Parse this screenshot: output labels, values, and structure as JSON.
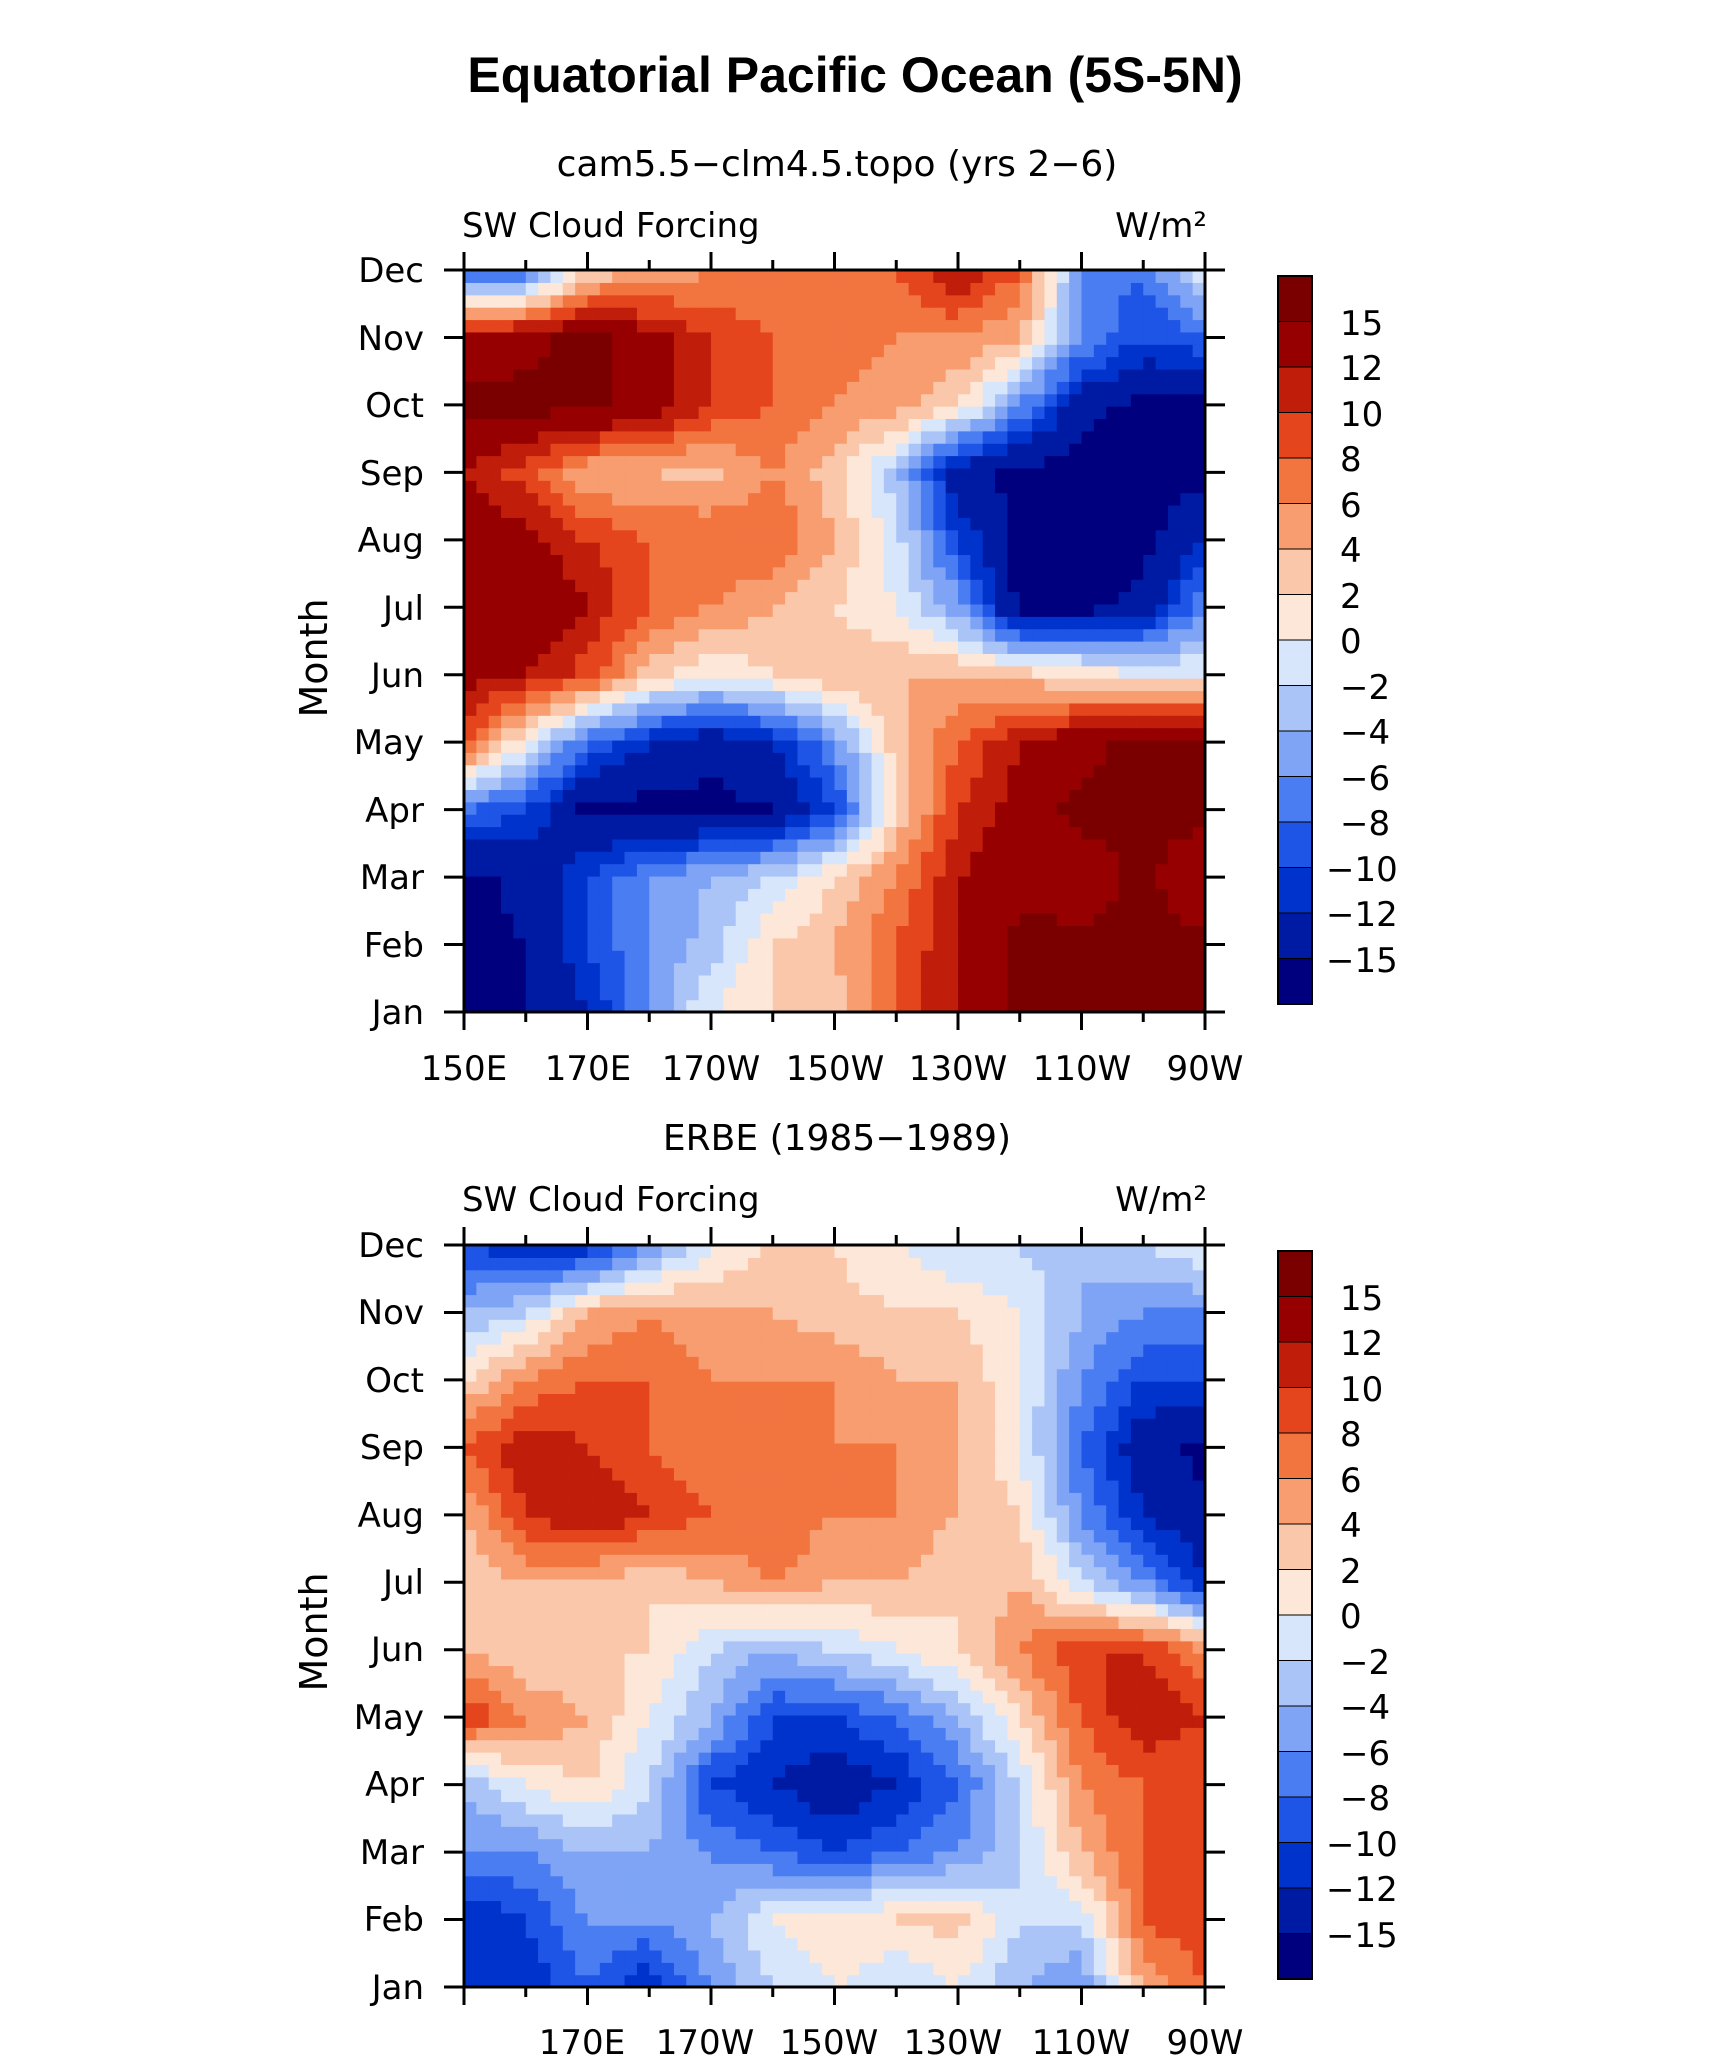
{
  "figure": {
    "title": "Equatorial Pacific Ocean (5S-5N)"
  },
  "colors": {
    "levels": [
      -15,
      -12,
      -10,
      -8,
      -6,
      -4,
      -2,
      0,
      2,
      4,
      6,
      8,
      10,
      12,
      15
    ],
    "palette": [
      "#00007f",
      "#001ba3",
      "#0033cc",
      "#1f55e6",
      "#4a7df2",
      "#7fa4f5",
      "#aac4f7",
      "#d7e6fb",
      "#fde7d8",
      "#fbc7aa",
      "#f79d6f",
      "#f27540",
      "#e5451d",
      "#c01d0a",
      "#960000",
      "#7a0000"
    ]
  },
  "colorbar": {
    "labels": [
      "15",
      "12",
      "10",
      "8",
      "6",
      "4",
      "2",
      "0",
      "−2",
      "−4",
      "−6",
      "−8",
      "−10",
      "−12",
      "−15"
    ]
  },
  "panels": [
    {
      "subtitle": "cam5.5−clm4.5.topo (yrs 2−6)",
      "left_label": "SW Cloud Forcing",
      "right_label": "W/m²",
      "ylabel": "Month",
      "x_ticks": [
        "150E",
        "170E",
        "170W",
        "150W",
        "130W",
        "110W",
        "90W"
      ],
      "y_ticks": [
        "Jan",
        "Feb",
        "Mar",
        "Apr",
        "May",
        "Jun",
        "Jul",
        "Aug",
        "Sep",
        "Oct",
        "Nov",
        "Dec"
      ]
    },
    {
      "subtitle": "ERBE (1985−1989)",
      "left_label": "SW Cloud Forcing",
      "right_label": "W/m²",
      "ylabel": "Month",
      "x_ticks": [
        "170E",
        "170W",
        "150W",
        "130W",
        "110W",
        "90W"
      ],
      "y_ticks": [
        "Jan",
        "Feb",
        "Mar",
        "Apr",
        "May",
        "Jun",
        "Jul",
        "Aug",
        "Sep",
        "Oct",
        "Nov",
        "Dec"
      ]
    }
  ],
  "chart_data": [
    {
      "type": "heatmap",
      "title": "cam5.5−clm4.5.topo (yrs 2−6)",
      "xlabel": "",
      "ylabel": "Month",
      "units": "W/m²",
      "variable": "SW Cloud Forcing",
      "x_values_deg_east": [
        150,
        160,
        170,
        180,
        190,
        200,
        210,
        220,
        230,
        240,
        250,
        260,
        270
      ],
      "y_months": [
        "Jan",
        "Feb",
        "Mar",
        "Apr",
        "May",
        "Jun",
        "Jul",
        "Aug",
        "Sep",
        "Oct",
        "Nov",
        "Dec"
      ],
      "z": [
        [
          -16,
          -15,
          -12,
          -6,
          0,
          2,
          3,
          8,
          12,
          16,
          16,
          16,
          16
        ],
        [
          -16,
          -15,
          -10,
          -6,
          -3,
          2,
          4,
          8,
          12,
          16,
          16,
          16,
          16
        ],
        [
          -16,
          -14,
          -10,
          -6,
          -4,
          -2,
          2,
          6,
          12,
          14,
          13,
          16,
          12
        ],
        [
          -8,
          -10,
          -16,
          -16,
          -16,
          -15,
          -10,
          2,
          10,
          13,
          16,
          16,
          16
        ],
        [
          9,
          0,
          -8,
          -12,
          -14,
          -12,
          -6,
          3,
          8,
          12,
          14,
          16,
          16
        ],
        [
          13,
          12,
          9,
          3,
          0,
          2,
          4,
          4,
          4,
          3,
          2,
          0,
          0
        ],
        [
          14,
          15,
          12,
          8,
          6,
          4,
          2,
          0,
          -5,
          -16,
          -16,
          -14,
          -6
        ],
        [
          14,
          13,
          10,
          8,
          8,
          8,
          4,
          -1,
          -10,
          -16,
          -16,
          -16,
          -12
        ],
        [
          12,
          9,
          4,
          4,
          3,
          6,
          3,
          -3,
          -14,
          -16,
          -16,
          -16,
          -16
        ],
        [
          16,
          16,
          16,
          14,
          10,
          8,
          6,
          5,
          2,
          -6,
          -14,
          -16,
          -16
        ],
        [
          13,
          14,
          16,
          13,
          10,
          8,
          7,
          6,
          6,
          4,
          -6,
          -10,
          -8
        ],
        [
          -10,
          -8,
          2,
          4,
          6,
          6,
          6,
          8,
          12,
          8,
          -6,
          -8,
          0
        ]
      ]
    },
    {
      "type": "heatmap",
      "title": "ERBE (1985−1989)",
      "xlabel": "",
      "ylabel": "Month",
      "units": "W/m²",
      "variable": "SW Cloud Forcing",
      "x_values_deg_east": [
        150,
        160,
        170,
        180,
        190,
        200,
        210,
        220,
        230,
        240,
        250,
        260,
        270
      ],
      "y_months": [
        "Jan",
        "Feb",
        "Mar",
        "Apr",
        "May",
        "Jun",
        "Jul",
        "Aug",
        "Sep",
        "Oct",
        "Nov",
        "Dec"
      ],
      "z": [
        [
          -10,
          -12,
          -8,
          -12,
          -6,
          -2,
          0,
          -2,
          0,
          -4,
          -6,
          4,
          8
        ],
        [
          -12,
          -10,
          -6,
          -6,
          -4,
          0,
          2,
          2,
          3,
          -2,
          -2,
          8,
          10
        ],
        [
          -6,
          -6,
          -4,
          -4,
          -6,
          -8,
          -10,
          -8,
          -6,
          -2,
          4,
          8,
          10
        ],
        [
          -4,
          0,
          2,
          -2,
          -10,
          -12,
          -14,
          -12,
          -8,
          -2,
          6,
          8,
          8
        ],
        [
          10,
          6,
          4,
          0,
          -4,
          -10,
          -10,
          -8,
          -4,
          2,
          8,
          12,
          10
        ],
        [
          4,
          2,
          2,
          2,
          -2,
          -4,
          -2,
          0,
          2,
          6,
          10,
          10,
          6
        ],
        [
          2,
          4,
          4,
          2,
          4,
          6,
          4,
          4,
          2,
          4,
          -2,
          -6,
          -12
        ],
        [
          4,
          10,
          12,
          10,
          8,
          8,
          6,
          6,
          4,
          2,
          -6,
          -12,
          -14
        ],
        [
          8,
          12,
          10,
          8,
          6,
          8,
          6,
          6,
          4,
          0,
          -8,
          -14,
          -16
        ],
        [
          2,
          6,
          8,
          8,
          6,
          6,
          6,
          4,
          4,
          0,
          -6,
          -10,
          -10
        ],
        [
          -4,
          -2,
          4,
          6,
          4,
          4,
          3,
          2,
          2,
          0,
          -4,
          -6,
          -6
        ],
        [
          -10,
          -12,
          -12,
          -6,
          0,
          2,
          2,
          0,
          -2,
          -2,
          -4,
          -2,
          0
        ]
      ]
    }
  ]
}
